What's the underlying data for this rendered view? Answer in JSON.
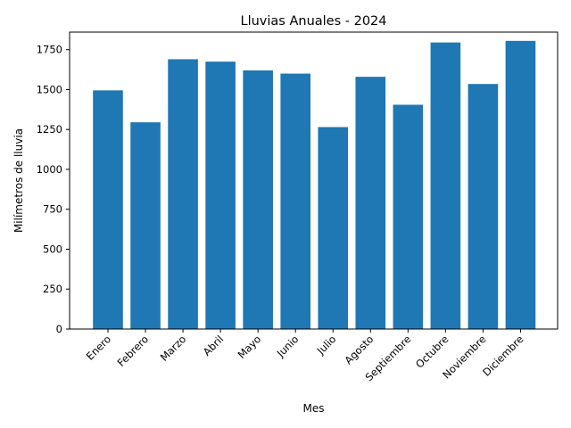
{
  "chart_data": {
    "type": "bar",
    "title": "Lluvias Anuales - 2024",
    "xlabel": "Mes",
    "ylabel": "Milímetros de lluvia",
    "categories": [
      "Enero",
      "Febrero",
      "Marzo",
      "Abril",
      "Mayo",
      "Junio",
      "Julio",
      "Agosto",
      "Septiembre",
      "Octubre",
      "Noviembre",
      "Diciembre"
    ],
    "values": [
      1495,
      1295,
      1690,
      1675,
      1620,
      1600,
      1265,
      1580,
      1405,
      1795,
      1535,
      1805
    ],
    "ylim": [
      0,
      1860
    ],
    "yticks": [
      0,
      250,
      500,
      750,
      1000,
      1250,
      1500,
      1750
    ],
    "grid": false,
    "bar_color": "#1f77b4"
  }
}
